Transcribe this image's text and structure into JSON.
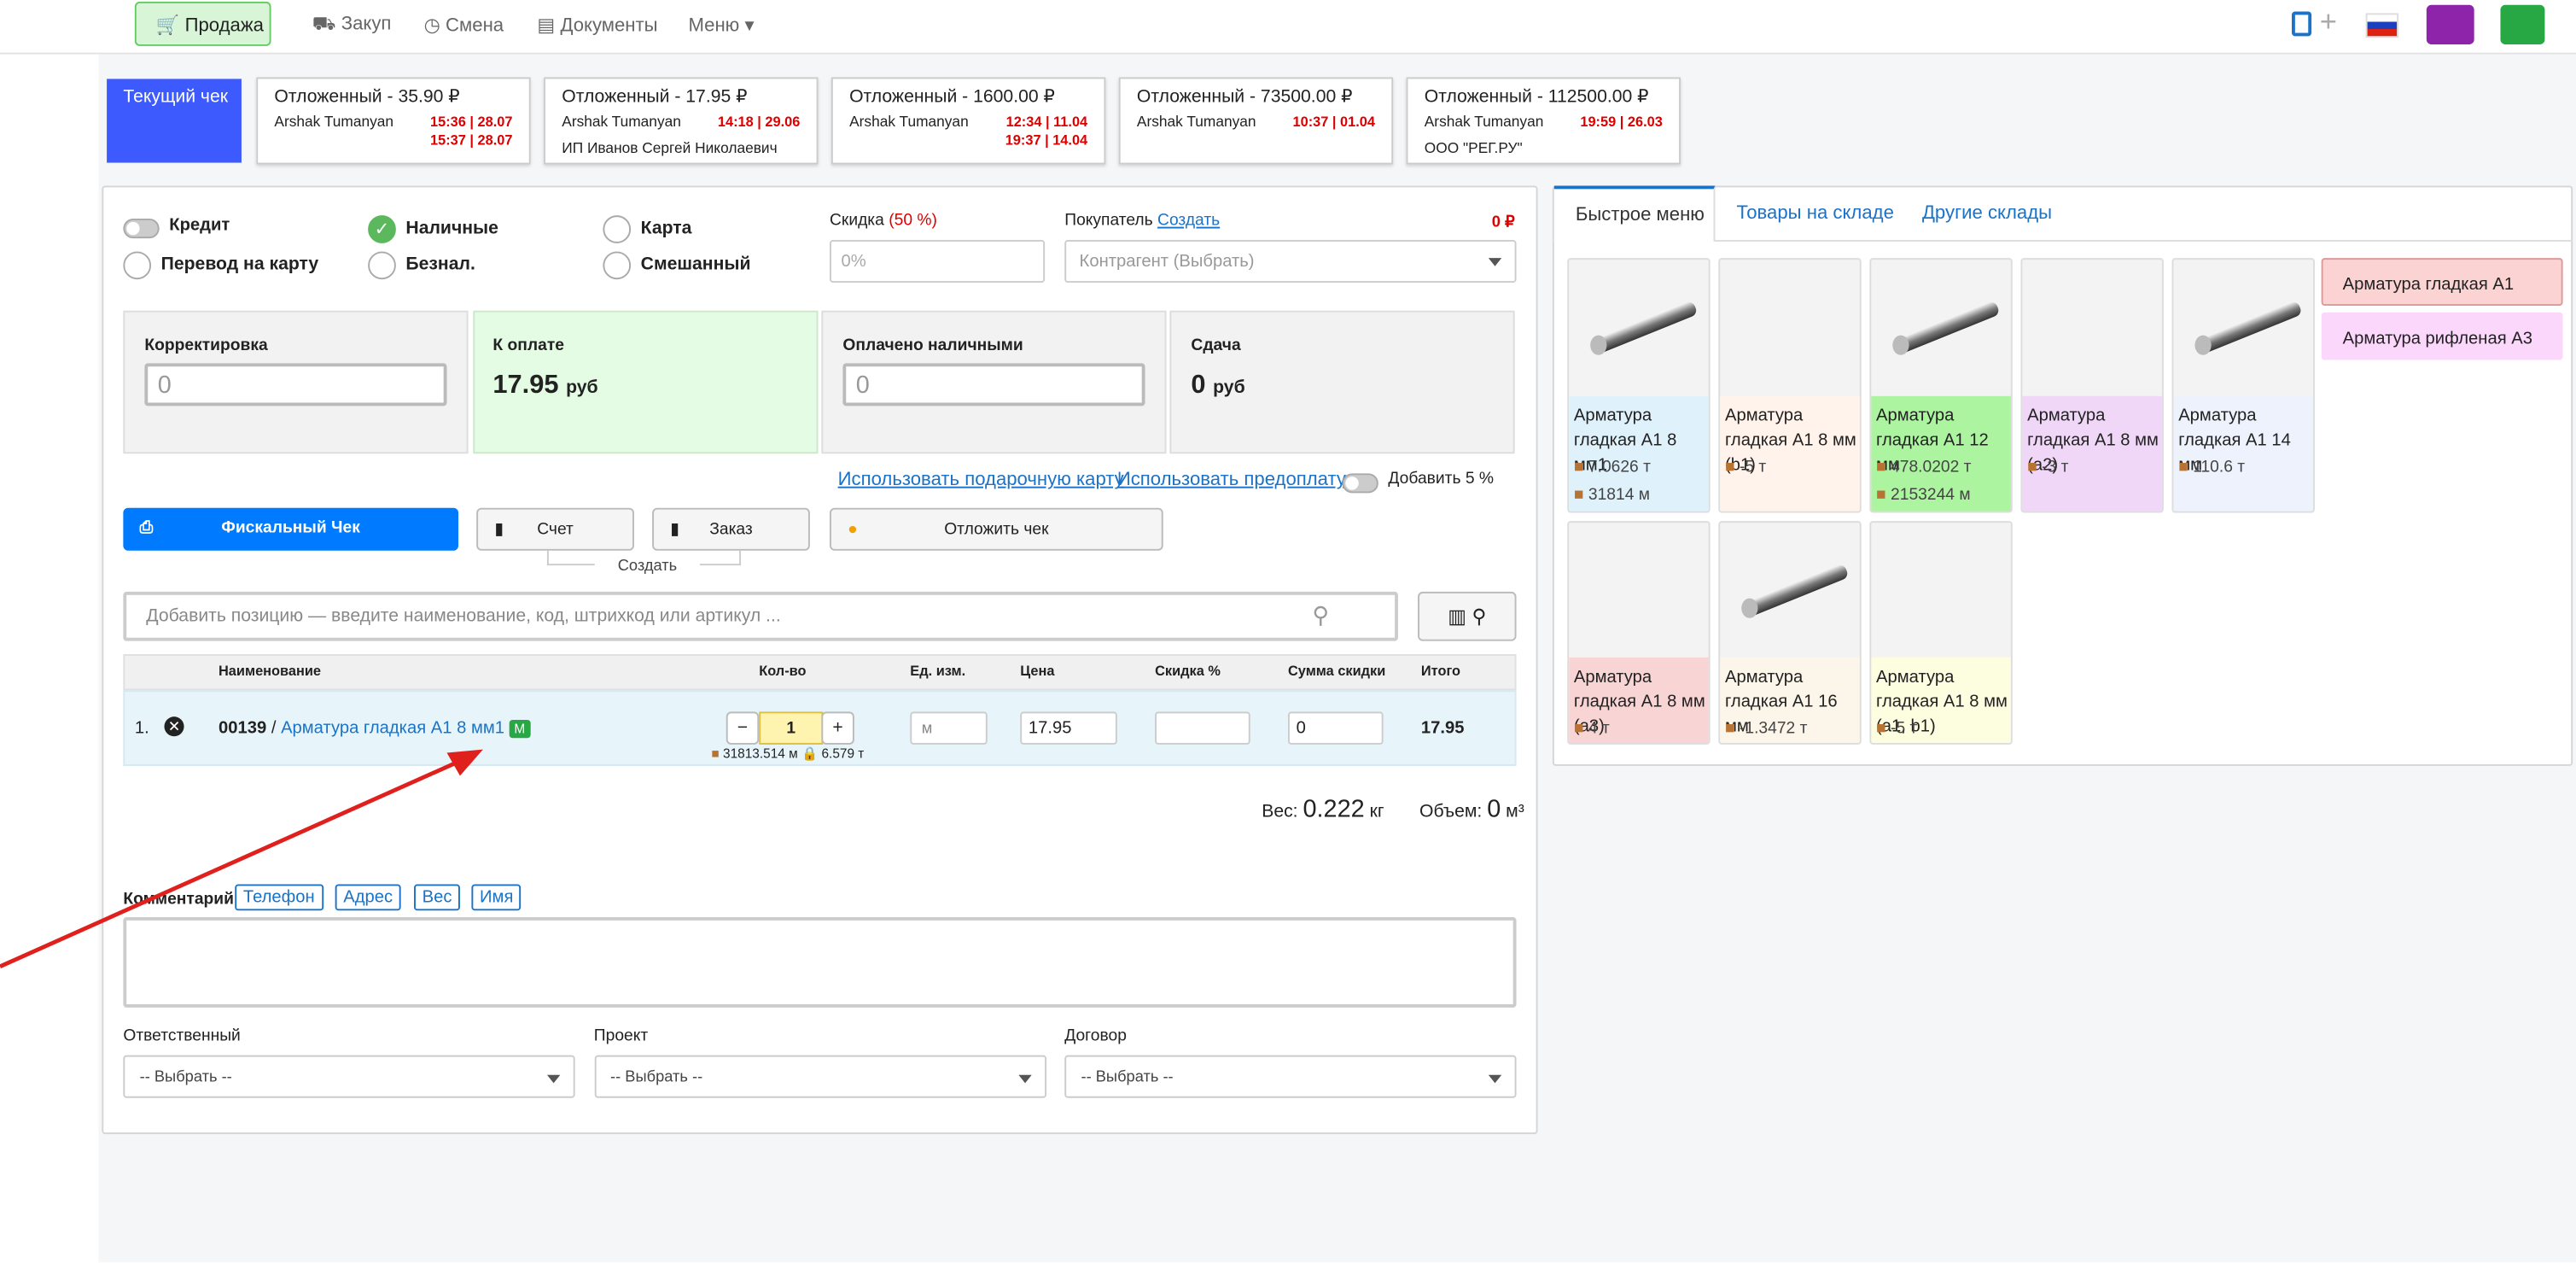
{
  "nav": {
    "items": [
      "Продажа",
      "Закуп",
      "Смена",
      "Документы",
      "Меню"
    ]
  },
  "checks": {
    "current": "Текущий чек",
    "deferred": [
      {
        "title": "Отложенный - 35.90 ₽",
        "user": "Arshak Tumanyan",
        "time": "15:36 | 28.07",
        "edited": "15:37 | 28.07"
      },
      {
        "title": "Отложенный - 17.95 ₽",
        "user": "Arshak Tumanyan",
        "time": "14:18 | 29.06",
        "client": "ИП Иванов Сергей Николаевич"
      },
      {
        "title": "Отложенный - 1600.00 ₽",
        "user": "Arshak Tumanyan",
        "time": "12:34 | 11.04",
        "edited": "19:37 | 14.04"
      },
      {
        "title": "Отложенный - 73500.00 ₽",
        "user": "Arshak Tumanyan",
        "time": "10:37 | 01.04"
      },
      {
        "title": "Отложенный - 112500.00 ₽",
        "user": "Arshak Tumanyan",
        "time": "19:59 | 26.03",
        "client": "ООО \"РЕГ.РУ\""
      }
    ]
  },
  "payment": {
    "credit": "Кредит",
    "options": [
      "Наличные",
      "Карта",
      "Перевод на карту",
      "Безнал.",
      "Смешанный"
    ]
  },
  "discount": {
    "label": "Скидка",
    "pct": "(50 %)",
    "placeholder": "0%"
  },
  "buyer": {
    "label": "Покупатель",
    "link": "Создать",
    "amount": "0 ₽",
    "placeholder": "Контрагент (Выбрать)"
  },
  "totals": {
    "correction": {
      "label": "Корректировка",
      "value": "0"
    },
    "to_pay": {
      "label": "К оплате",
      "value": "17.95",
      "unit": "руб"
    },
    "paid_cash": {
      "label": "Оплачено наличными",
      "value": "0"
    },
    "change": {
      "label": "Сдача",
      "value": "0",
      "unit": "руб"
    }
  },
  "links": {
    "gift": "Использовать подарочную карту",
    "prepay": "Использовать предоплату",
    "add5": "Добавить 5 %"
  },
  "buttons": {
    "fiscal": "Фискальный Чек",
    "invoice": "Счет",
    "order": "Заказ",
    "defer": "Отложить чек",
    "create": "Создать"
  },
  "search": {
    "placeholder": "Добавить позицию — введите наименование, код, штрихкод или артикул ..."
  },
  "table": {
    "headers": [
      "Наименование",
      "Кол-во",
      "Ед. изм.",
      "Цена",
      "Скидка %",
      "Сумма скидки",
      "Итого"
    ],
    "row": {
      "num": "1.",
      "code": "00139",
      "name": "Арматура гладкая А1 8 мм1",
      "badge": "М",
      "qty": "1",
      "stock": "31813.514 м",
      "reserved": "6.579 т",
      "unit": "м",
      "price": "17.95",
      "discount_sum": "0",
      "total": "17.95"
    }
  },
  "summary": {
    "weight_label": "Вес:",
    "weight": "0.222",
    "weight_unit": "кг",
    "volume_label": "Объем:",
    "volume": "0",
    "volume_unit": "м³"
  },
  "comment": {
    "label": "Комментарий",
    "tags": [
      "Телефон",
      "Адрес",
      "Вес",
      "Имя"
    ]
  },
  "selects": [
    {
      "label": "Ответственный",
      "value": "-- Выбрать --"
    },
    {
      "label": "Проект",
      "value": "-- Выбрать --"
    },
    {
      "label": "Договор",
      "value": "-- Выбрать --"
    }
  ],
  "right": {
    "tabs": [
      "Быстрое меню",
      "Товары на складе",
      "Другие склады"
    ],
    "products": [
      {
        "name": "Арматура гладкая А1 8 мм1",
        "stocks": [
          "7.0626 т",
          "31814 м"
        ],
        "color": "#dff1fb",
        "image": true
      },
      {
        "name": "Арматура гладкая А1 8 мм (b1)",
        "stocks": [
          "-5 т"
        ],
        "color": "#fff3eb",
        "image": false
      },
      {
        "name": "Арматура гладкая А1 12 мм",
        "stocks": [
          "478.0202 т",
          "2153244 м"
        ],
        "color": "#acf4a0",
        "image": true
      },
      {
        "name": "Арматура гладкая А1 8 мм (a2)",
        "stocks": [
          "-3 т"
        ],
        "color": "#f0d7f8",
        "image": false
      },
      {
        "name": "Арматура гладкая А1 14 мм",
        "stocks": [
          "110.6 т"
        ],
        "color": "#edf2fc",
        "image": true
      },
      {
        "name": "Арматура гладкая А1 8 мм (а3)",
        "stocks": [
          "4 т"
        ],
        "color": "#f9d4d4",
        "image": false
      },
      {
        "name": "Арматура гладкая А1 16 мм",
        "stocks": [
          "-1.3472 т"
        ],
        "color": "#fcf5e9",
        "image": true
      },
      {
        "name": "Арматура гладкая А1 8 мм (a1, b1)",
        "stocks": [
          "-5 т"
        ],
        "color": "#fdfddf",
        "image": false
      }
    ],
    "categories": [
      {
        "name": "Арматура гладкая А1",
        "color": "#fbd3d3"
      },
      {
        "name": "Арматура рифленая А3",
        "color": "#fbd7fb"
      }
    ]
  }
}
